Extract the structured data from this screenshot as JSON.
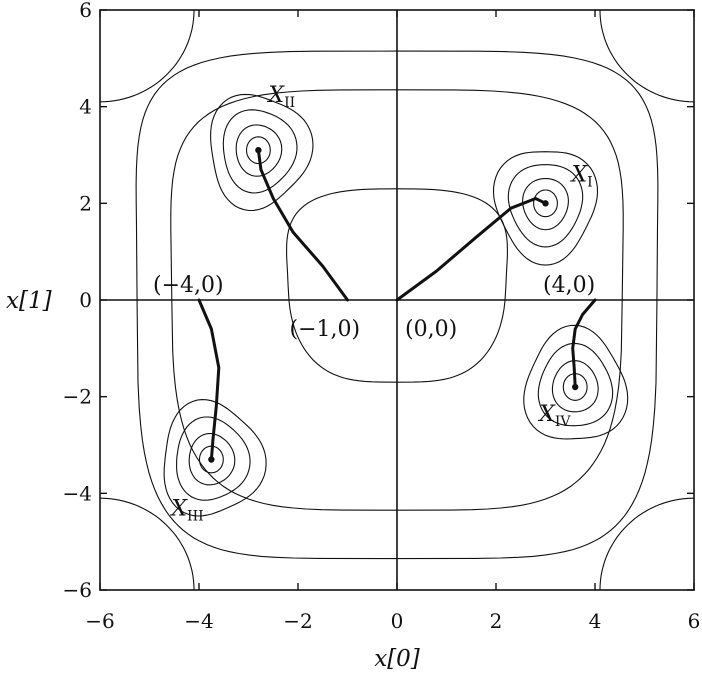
{
  "chart_data": {
    "type": "line",
    "title": "",
    "xlabel": "x[0]",
    "ylabel": "x[1]",
    "xlim": [
      -6,
      6
    ],
    "ylim": [
      -6,
      6
    ],
    "x_ticks": [
      -6,
      -4,
      -2,
      0,
      2,
      4,
      6
    ],
    "y_ticks": [
      -6,
      -4,
      -2,
      0,
      2,
      4,
      6
    ],
    "x_tick_labels": [
      "−6",
      "−4",
      "−2",
      "0",
      "2",
      "4",
      "6"
    ],
    "y_tick_labels": [
      "−6",
      "−4",
      "−2",
      "0",
      "2",
      "4",
      "6"
    ],
    "grid": false,
    "legend": "none",
    "line_color": "#111111",
    "contour_levels": [
      [
        0.24,
        0.46,
        0.74,
        1.02
      ],
      [
        0.24,
        0.46,
        0.74,
        1.02
      ],
      [
        0.24,
        0.46,
        0.74,
        1.02
      ],
      [
        0.24,
        0.46,
        0.74,
        1.02
      ]
    ],
    "wells": [
      {
        "label": "X",
        "subscript": "I",
        "center": [
          3.0,
          2.0
        ]
      },
      {
        "label": "X",
        "subscript": "II",
        "center": [
          -2.8,
          3.1
        ]
      },
      {
        "label": "X",
        "subscript": "III",
        "center": [
          -3.75,
          -3.3
        ]
      },
      {
        "label": "X",
        "subscript": "IV",
        "center": [
          3.6,
          -1.8
        ]
      }
    ],
    "trajectories": [
      {
        "name": "",
        "start_label": "(0,0)",
        "x": [
          0,
          0.8,
          1.6,
          2.3,
          2.8,
          3.0
        ],
        "y": [
          0,
          0.6,
          1.3,
          1.9,
          2.1,
          2.0
        ]
      },
      {
        "name": "",
        "start_label": "(−1,0)",
        "x": [
          -1.0,
          -1.5,
          -2.1,
          -2.5,
          -2.75,
          -2.8
        ],
        "y": [
          0,
          0.7,
          1.4,
          2.1,
          2.7,
          3.1
        ]
      },
      {
        "name": "",
        "start_label": "(−4,0)",
        "x": [
          -4.0,
          -3.75,
          -3.6,
          -3.65,
          -3.72,
          -3.75
        ],
        "y": [
          0,
          -0.6,
          -1.4,
          -2.2,
          -2.9,
          -3.3
        ]
      },
      {
        "name": "",
        "start_label": "(4,0)",
        "x": [
          4.0,
          3.75,
          3.6,
          3.55,
          3.58,
          3.6
        ],
        "y": [
          0,
          -0.3,
          -0.6,
          -1.0,
          -1.4,
          -1.8
        ]
      }
    ]
  }
}
